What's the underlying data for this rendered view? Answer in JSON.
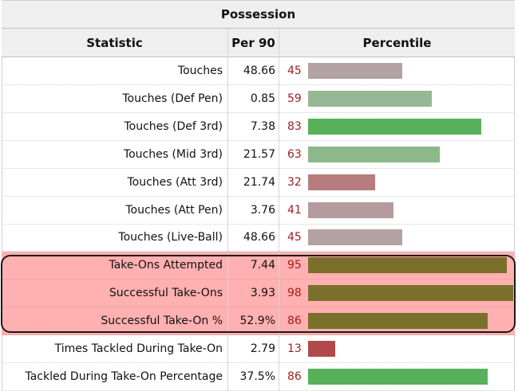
{
  "table": {
    "title": "Possession",
    "headers": {
      "statistic": "Statistic",
      "per90": "Per 90",
      "percentile": "Percentile"
    },
    "rows": [
      {
        "stat": "Touches",
        "per90": "48.66",
        "pct": "45",
        "pct_value": 45,
        "color": "#b3a1a3",
        "highlighted": false
      },
      {
        "stat": "Touches (Def Pen)",
        "per90": "0.85",
        "pct": "59",
        "pct_value": 59,
        "color": "#98b795",
        "highlighted": false
      },
      {
        "stat": "Touches (Def 3rd)",
        "per90": "7.38",
        "pct": "83",
        "pct_value": 83,
        "color": "#58b05a",
        "highlighted": false
      },
      {
        "stat": "Touches (Mid 3rd)",
        "per90": "21.57",
        "pct": "63",
        "pct_value": 63,
        "color": "#8cb88a",
        "highlighted": false
      },
      {
        "stat": "Touches (Att 3rd)",
        "per90": "21.74",
        "pct": "32",
        "pct_value": 32,
        "color": "#b87c7e",
        "highlighted": false
      },
      {
        "stat": "Touches (Att Pen)",
        "per90": "3.76",
        "pct": "41",
        "pct_value": 41,
        "color": "#b39b9e",
        "highlighted": false
      },
      {
        "stat": "Touches (Live-Ball)",
        "per90": "48.66",
        "pct": "45",
        "pct_value": 45,
        "color": "#b3a1a3",
        "highlighted": false
      },
      {
        "stat": "Take-Ons Attempted",
        "per90": "7.44",
        "pct": "95",
        "pct_value": 95,
        "color": "#7b6f2c",
        "highlighted": true
      },
      {
        "stat": "Successful Take-Ons",
        "per90": "3.93",
        "pct": "98",
        "pct_value": 98,
        "color": "#7b6f2c",
        "highlighted": true
      },
      {
        "stat": "Successful Take-On %",
        "per90": "52.9%",
        "pct": "86",
        "pct_value": 86,
        "color": "#7b6f2c",
        "highlighted": true
      },
      {
        "stat": "Times Tackled During Take-On",
        "per90": "2.79",
        "pct": "13",
        "pct_value": 13,
        "color": "#b04a4a",
        "highlighted": false
      },
      {
        "stat": "Tackled During Take-On Percentage",
        "per90": "37.5%",
        "pct": "86",
        "pct_value": 86,
        "color": "#58b05a",
        "highlighted": false
      }
    ]
  }
}
